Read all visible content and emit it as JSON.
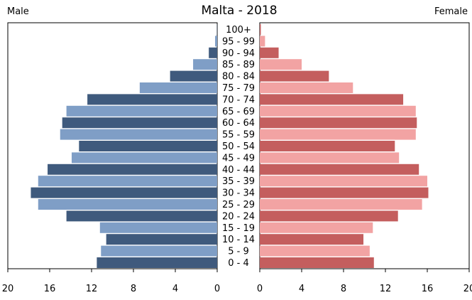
{
  "chart_data": {
    "type": "bar",
    "title": "Malta - 2018",
    "left_label": "Male",
    "right_label": "Female",
    "categories": [
      "100+",
      "95 - 99",
      "90 - 94",
      "85 - 89",
      "80 - 84",
      "75 - 79",
      "70 - 74",
      "65 - 69",
      "60 - 64",
      "55 - 59",
      "50 - 54",
      "45 - 49",
      "40 - 44",
      "35 - 39",
      "30 - 34",
      "25 - 29",
      "20 - 24",
      "15 - 19",
      "10 - 14",
      "5 - 9",
      "0 - 4"
    ],
    "series": [
      {
        "name": "Male",
        "values": [
          0.02,
          0.2,
          0.8,
          2.3,
          4.5,
          7.4,
          12.4,
          14.4,
          14.8,
          15.0,
          13.2,
          13.9,
          16.2,
          17.1,
          17.8,
          17.1,
          14.4,
          11.2,
          10.6,
          11.1,
          11.5
        ]
      },
      {
        "name": "Female",
        "values": [
          0.1,
          0.5,
          1.8,
          4.0,
          6.6,
          8.9,
          13.7,
          14.9,
          15.0,
          14.9,
          12.9,
          13.3,
          15.2,
          16.0,
          16.1,
          15.5,
          13.2,
          10.8,
          9.9,
          10.5,
          10.9
        ]
      }
    ],
    "xlim": [
      0,
      20
    ],
    "ticks": [
      0,
      4,
      8,
      12,
      16,
      20
    ],
    "male_tick_labels": [
      "20",
      "16",
      "12",
      "8",
      "4",
      "0"
    ],
    "female_tick_labels": [
      "0",
      "4",
      "8",
      "12",
      "16",
      "20"
    ],
    "colors": {
      "male_dark": "#3f5a7d",
      "male_light": "#7f9ec6",
      "female_dark": "#c45e5e",
      "female_light": "#f2a3a3"
    }
  }
}
